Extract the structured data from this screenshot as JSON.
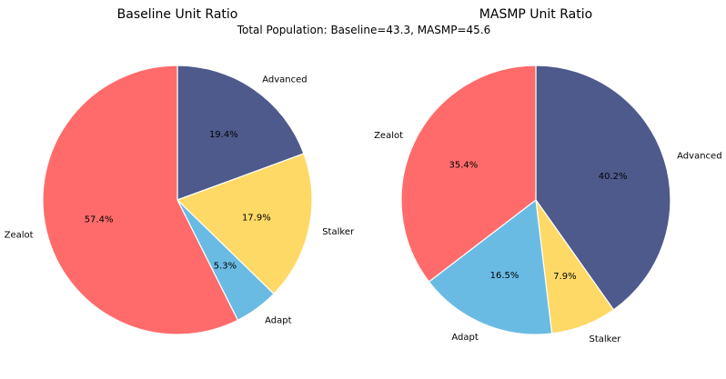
{
  "suptitle": "Total Population: Baseline=43.3, MASMP=45.6",
  "colors": {
    "Zealot": "#FF6B6B",
    "Advanced": "#4E5A8C",
    "Stalker": "#FFD966",
    "Adapt": "#6ABBE3"
  },
  "chart_data": [
    {
      "type": "pie",
      "title": "Baseline Unit Ratio",
      "start": "top",
      "direction": "clockwise",
      "labels": [
        "Advanced",
        "Stalker",
        "Adapt",
        "Zealot"
      ],
      "values": [
        19.4,
        17.9,
        5.3,
        57.4
      ],
      "pct_labels": [
        "19.4%",
        "17.9%",
        "5.3%",
        "57.4%"
      ]
    },
    {
      "type": "pie",
      "title": "MASMP Unit Ratio",
      "start": "top",
      "direction": "clockwise",
      "labels": [
        "Advanced",
        "Stalker",
        "Adapt",
        "Zealot"
      ],
      "values": [
        40.2,
        7.9,
        16.5,
        35.4
      ],
      "pct_labels": [
        "40.2%",
        "7.9%",
        "16.5%",
        "35.4%"
      ]
    }
  ]
}
